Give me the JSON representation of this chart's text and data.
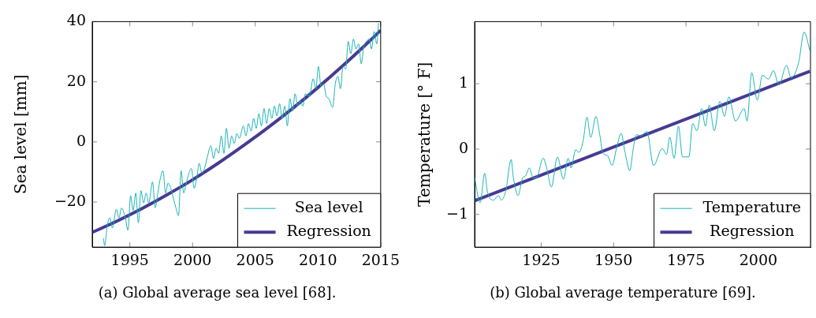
{
  "chart_data": [
    {
      "type": "line",
      "ylabel": "Sea level [mm]",
      "xlim": [
        1992,
        2015
      ],
      "ylim": [
        -35,
        40
      ],
      "xticks": [
        1995,
        2000,
        2005,
        2010,
        2015
      ],
      "yticks": [
        -20,
        0,
        20,
        40
      ],
      "grid": false,
      "legend": "bottom right",
      "marker": "none",
      "line_style": "solid",
      "annotations": [
        "(a) Global average sea level [68]."
      ],
      "series": [
        {
          "name": "Sea level",
          "color": "#1ab3b8",
          "x": [
            1992.89,
            1992.99,
            1993.2,
            1993.4,
            1993.61,
            1993.92,
            1994.13,
            1994.33,
            1994.64,
            1994.85,
            1995.06,
            1995.26,
            1995.47,
            1995.68,
            1995.88,
            1996.09,
            1996.3,
            1996.5,
            1996.81,
            1997.02,
            1997.23,
            1997.43,
            1997.64,
            1997.85,
            1998.05,
            1998.26,
            1998.47,
            1998.67,
            1998.88,
            1999.09,
            1999.29,
            1999.5,
            1999.71,
            1999.91,
            2000.12,
            2000.33,
            2000.53,
            2000.74,
            2000.95,
            2001.15,
            2001.46,
            2001.67,
            2001.88,
            2002.08,
            2002.29,
            2002.5,
            2002.7,
            2002.91,
            2003.12,
            2003.33,
            2003.53,
            2003.74,
            2004.05,
            2004.26,
            2004.46,
            2004.67,
            2004.87,
            2005.08,
            2005.29,
            2005.49,
            2005.7,
            2005.91,
            2006.11,
            2006.32,
            2006.53,
            2006.73,
            2006.94,
            2007.14,
            2007.35,
            2007.56,
            2007.76,
            2007.97,
            2008.18,
            2008.38,
            2008.59,
            2008.8,
            2009.0,
            2009.31,
            2009.62,
            2009.83,
            2010.04,
            2010.24,
            2010.45,
            2010.66,
            2010.86,
            2011.17,
            2011.38,
            2011.59,
            2011.79,
            2012.0,
            2012.21,
            2012.41,
            2012.62,
            2012.83,
            2013.03,
            2013.24,
            2013.45,
            2013.65,
            2013.86,
            2014.07,
            2014.27,
            2014.48,
            2014.69,
            2014.83
          ],
          "values": [
            -32.0,
            -34.5,
            -27.8,
            -25.3,
            -28.6,
            -22.4,
            -25.3,
            -22.0,
            -25.3,
            -29.4,
            -17.9,
            -22.8,
            -17.0,
            -26.9,
            -16.2,
            -20.3,
            -17.0,
            -20.3,
            -13.3,
            -21.9,
            -17.0,
            -12.1,
            -9.6,
            -17.0,
            -13.7,
            -15.4,
            -18.7,
            -21.9,
            -24.5,
            -9.6,
            -17.0,
            -13.7,
            -10.4,
            -8.8,
            -15.4,
            -12.1,
            -7.1,
            -10.4,
            -8.8,
            -5.5,
            -1.3,
            -5.5,
            -2.1,
            -3.8,
            2.0,
            -3.8,
            4.5,
            -2.1,
            2.0,
            -0.5,
            2.8,
            1.2,
            5.3,
            2.0,
            6.1,
            3.6,
            7.8,
            4.5,
            9.4,
            5.3,
            11.1,
            6.1,
            11.1,
            7.8,
            11.9,
            8.6,
            12.7,
            7.8,
            11.9,
            5.3,
            14.4,
            10.2,
            16.0,
            11.9,
            13.6,
            11.9,
            16.0,
            15.2,
            21.0,
            17.7,
            25.1,
            18.5,
            19.3,
            15.2,
            14.4,
            11.5,
            19.3,
            21.8,
            17.7,
            25.1,
            24.3,
            33.4,
            29.3,
            34.2,
            30.9,
            32.6,
            26.0,
            31.7,
            33.4,
            34.2,
            30.9,
            36.7,
            32.6,
            39.5
          ]
        },
        {
          "name": "Regression",
          "color": "#463a93",
          "x": [
            1992,
            1994,
            1996,
            1998,
            2000,
            2002,
            2004,
            2006,
            2008,
            2010,
            2012,
            2014,
            2015
          ],
          "values": [
            -30.1,
            -26.3,
            -22.1,
            -17.5,
            -12.6,
            -7.2,
            -1.4,
            4.7,
            11.2,
            18.1,
            25.4,
            33.1,
            37.1
          ]
        }
      ]
    },
    {
      "type": "line",
      "ylabel": "Temperature [° F]",
      "xlim": [
        1902,
        2018
      ],
      "ylim": [
        -1.5,
        1.95
      ],
      "xticks": [
        1925,
        1950,
        1975,
        2000
      ],
      "yticks": [
        -1,
        0,
        1
      ],
      "grid": false,
      "legend": "bottom right",
      "marker": "none",
      "line_style": "solid",
      "annotations": [
        "(b) Global average temperature [69]."
      ],
      "series": [
        {
          "name": "Temperature",
          "color": "#1ab3b8",
          "x": [
            1902.0,
            1903.9,
            1905.5,
            1906.5,
            1908.6,
            1910.2,
            1911.2,
            1912.8,
            1914.6,
            1915.4,
            1917.0,
            1918.6,
            1919.6,
            1920.9,
            1922.2,
            1923.3,
            1925.7,
            1926.9,
            1928.5,
            1930.6,
            1932.7,
            1934.3,
            1935.3,
            1936.9,
            1938.0,
            1939.5,
            1940.8,
            1942.1,
            1943.9,
            1945.3,
            1946.3,
            1947.9,
            1949.5,
            1951.0,
            1952.6,
            1954.0,
            1955.6,
            1956.8,
            1957.9,
            1959.4,
            1961.5,
            1963.8,
            1966.8,
            1968.3,
            1969.4,
            1970.9,
            1972.4,
            1973.8,
            1976.0,
            1977.3,
            1978.8,
            1980.4,
            1981.7,
            1983.0,
            1984.8,
            1986.7,
            1988.3,
            1989.8,
            1992.1,
            1995.1,
            1996.1,
            1997.7,
            1999.6,
            2001.4,
            2003.5,
            2005.2,
            2007.1,
            2009.7,
            2011.3,
            2013.9,
            2015.8,
            2017.8
          ],
          "values": [
            -0.44,
            -0.82,
            -0.37,
            -0.67,
            -0.78,
            -0.71,
            -0.78,
            -0.63,
            -0.16,
            -0.44,
            -0.71,
            -0.44,
            -0.41,
            -0.29,
            -0.44,
            -0.44,
            -0.14,
            -0.29,
            -0.58,
            -0.12,
            -0.46,
            -0.14,
            -0.29,
            -0.01,
            -0.05,
            0.13,
            0.49,
            0.18,
            0.5,
            0.2,
            -0.06,
            -0.1,
            -0.25,
            0.01,
            0.24,
            -0.06,
            -0.33,
            0.01,
            0.22,
            0.2,
            0.27,
            -0.25,
            0.01,
            -0.08,
            0.18,
            -0.14,
            0.35,
            -0.12,
            -0.12,
            0.39,
            0.28,
            0.62,
            0.35,
            0.67,
            0.28,
            0.73,
            0.5,
            0.8,
            0.43,
            0.62,
            0.43,
            1.17,
            0.75,
            1.13,
            1.07,
            1.2,
            0.98,
            1.28,
            1.09,
            1.32,
            1.79,
            1.51
          ]
        },
        {
          "name": "Regression",
          "color": "#463a93",
          "x": [
            1902,
            2017.8
          ],
          "values": [
            -0.79,
            1.19
          ]
        }
      ]
    }
  ]
}
